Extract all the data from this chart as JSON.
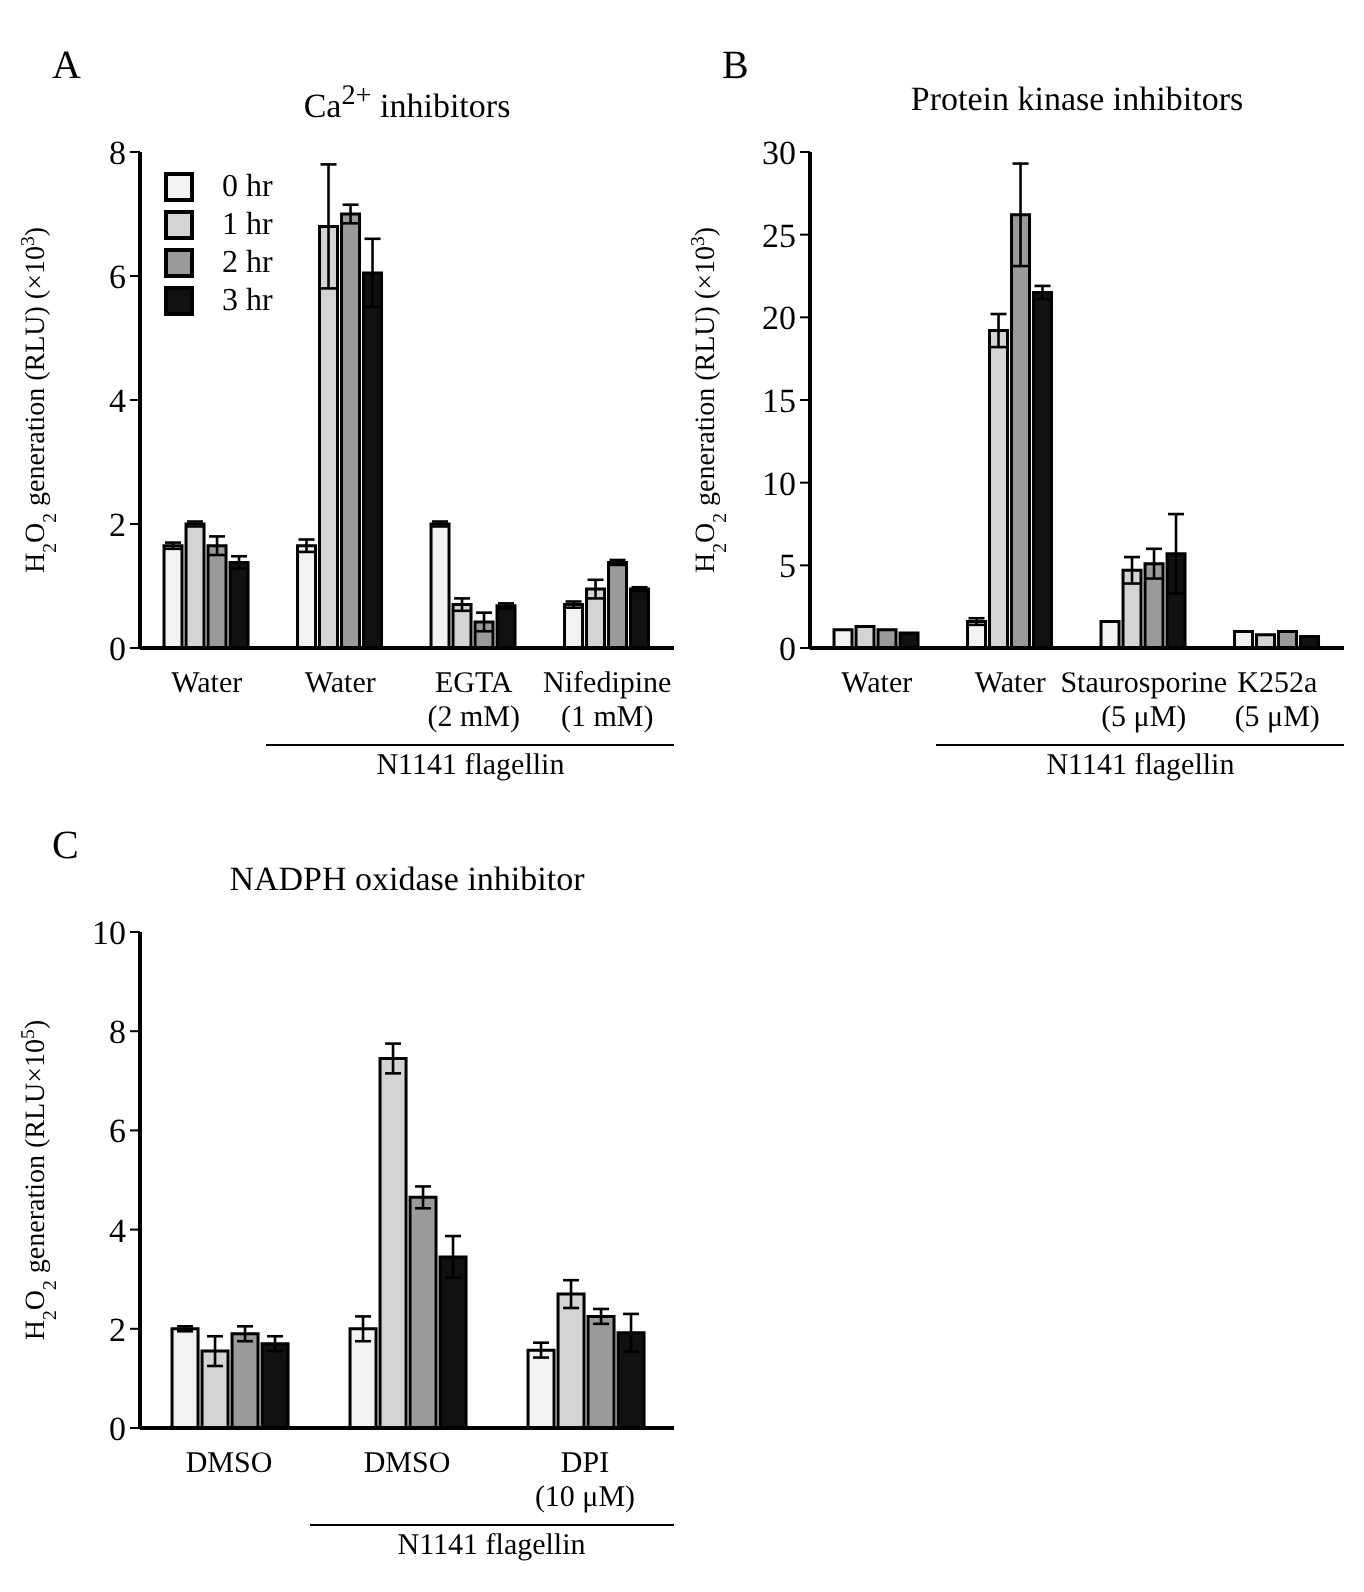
{
  "chart_data": [
    {
      "type": "bar",
      "title": "Ca$^{2+}$ inhibitors",
      "ylabel": "H$_{2}$O$_{2}$ generation (RLU) (×10$^{3}$)",
      "categories": [
        "Water",
        "Water",
        "EGTA\n(2 mM)",
        "Nifedipine\n(1 mM)"
      ],
      "ylim": [
        0,
        8
      ],
      "yticks": [
        0,
        2,
        4,
        6,
        8
      ],
      "legend": "top left",
      "annotations": [
        "A",
        "N1141 flagellin"
      ],
      "series": [
        {
          "name": "0 hr",
          "color": "#f2f2f2",
          "values": [
            1.65,
            1.65,
            2.0,
            0.7
          ],
          "errors": [
            0.05,
            0.1,
            0.04,
            0.05
          ]
        },
        {
          "name": "1 hr",
          "color": "#d4d4d4",
          "values": [
            2.0,
            6.8,
            0.7,
            0.95
          ],
          "errors": [
            0.04,
            1.0,
            0.1,
            0.15
          ]
        },
        {
          "name": "2 hr",
          "color": "#9a9a9a",
          "values": [
            1.65,
            7.0,
            0.42,
            1.38
          ],
          "errors": [
            0.15,
            0.15,
            0.15,
            0.04
          ]
        },
        {
          "name": "3 hr",
          "color": "#111111",
          "values": [
            1.38,
            6.05,
            0.68,
            0.95
          ],
          "errors": [
            0.1,
            0.55,
            0.04,
            0.03
          ]
        }
      ]
    },
    {
      "type": "bar",
      "title": "Protein kinase inhibitors",
      "ylabel": "H$_{2}$O$_{2}$ generation (RLU) (×10$^{3}$)",
      "categories": [
        "Water",
        "Water",
        "Staurosporine\n(5 μM)",
        "K252a\n(5 μM)"
      ],
      "ylim": [
        0,
        30
      ],
      "yticks": [
        0,
        5,
        10,
        15,
        20,
        25,
        30
      ],
      "annotations": [
        "B",
        "N1141 flagellin"
      ],
      "series": [
        {
          "color": "#f2f2f2",
          "values": [
            1.1,
            1.6,
            1.6,
            1.0
          ],
          "errors": [
            null,
            0.2,
            null,
            null
          ]
        },
        {
          "color": "#d4d4d4",
          "values": [
            1.3,
            19.2,
            4.7,
            0.8
          ],
          "errors": [
            null,
            1.0,
            0.8,
            null
          ]
        },
        {
          "color": "#9a9a9a",
          "values": [
            1.1,
            26.2,
            5.1,
            1.0
          ],
          "errors": [
            null,
            3.1,
            0.9,
            null
          ]
        },
        {
          "color": "#111111",
          "values": [
            0.9,
            21.5,
            5.7,
            0.7
          ],
          "errors": [
            null,
            0.4,
            2.4,
            null
          ]
        }
      ]
    },
    {
      "type": "bar",
      "title": "NADPH oxidase inhibitor",
      "ylabel": "H$_{2}$O$_{2}$ generation (RLU×10$^{5}$)",
      "categories": [
        "DMSO",
        "DMSO",
        "DPI\n(10 μM)"
      ],
      "ylim": [
        0,
        10
      ],
      "yticks": [
        0,
        2,
        4,
        6,
        8,
        10
      ],
      "annotations": [
        "C",
        "N1141 flagellin"
      ],
      "series": [
        {
          "color": "#f2f2f2",
          "values": [
            2.0,
            2.0,
            1.57
          ],
          "errors": [
            0.05,
            0.25,
            0.15
          ]
        },
        {
          "color": "#d4d4d4",
          "values": [
            1.55,
            7.45,
            2.7
          ],
          "errors": [
            0.3,
            0.3,
            0.28
          ]
        },
        {
          "color": "#9a9a9a",
          "values": [
            1.9,
            4.65,
            2.25
          ],
          "errors": [
            0.15,
            0.22,
            0.15
          ]
        },
        {
          "color": "#111111",
          "values": [
            1.7,
            3.45,
            1.92
          ],
          "errors": [
            0.15,
            0.42,
            0.38
          ]
        }
      ]
    }
  ]
}
